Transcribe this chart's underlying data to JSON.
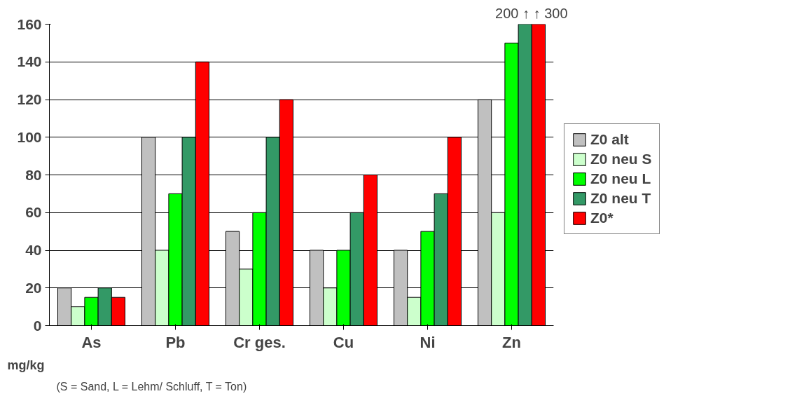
{
  "chart_data": {
    "type": "bar",
    "categories": [
      "As",
      "Pb",
      "Cr ges.",
      "Cu",
      "Ni",
      "Zn"
    ],
    "series": [
      {
        "name": "Z0 alt",
        "color": "#c0c0c0",
        "values": [
          20,
          100,
          50,
          40,
          40,
          120
        ]
      },
      {
        "name": "Z0 neu S",
        "color": "#ccffcc",
        "values": [
          10,
          40,
          30,
          20,
          15,
          60
        ]
      },
      {
        "name": "Z0 neu L",
        "color": "#00ff00",
        "values": [
          15,
          70,
          60,
          40,
          50,
          150
        ]
      },
      {
        "name": "Z0 neu T",
        "color": "#339966",
        "values": [
          20,
          100,
          100,
          60,
          70,
          160
        ]
      },
      {
        "name": "Z0*",
        "color": "#ff0000",
        "values": [
          15,
          140,
          120,
          80,
          100,
          160
        ]
      }
    ],
    "ylim": [
      0,
      160
    ],
    "yticks": [
      0,
      20,
      40,
      60,
      80,
      100,
      120,
      140,
      160
    ],
    "grid": "y",
    "legend": "right",
    "annotations": [
      "200 ↑ ↑ 300",
      "mg/kg",
      "(S = Sand, L = Lehm/ Schluff, T = Ton)"
    ]
  }
}
